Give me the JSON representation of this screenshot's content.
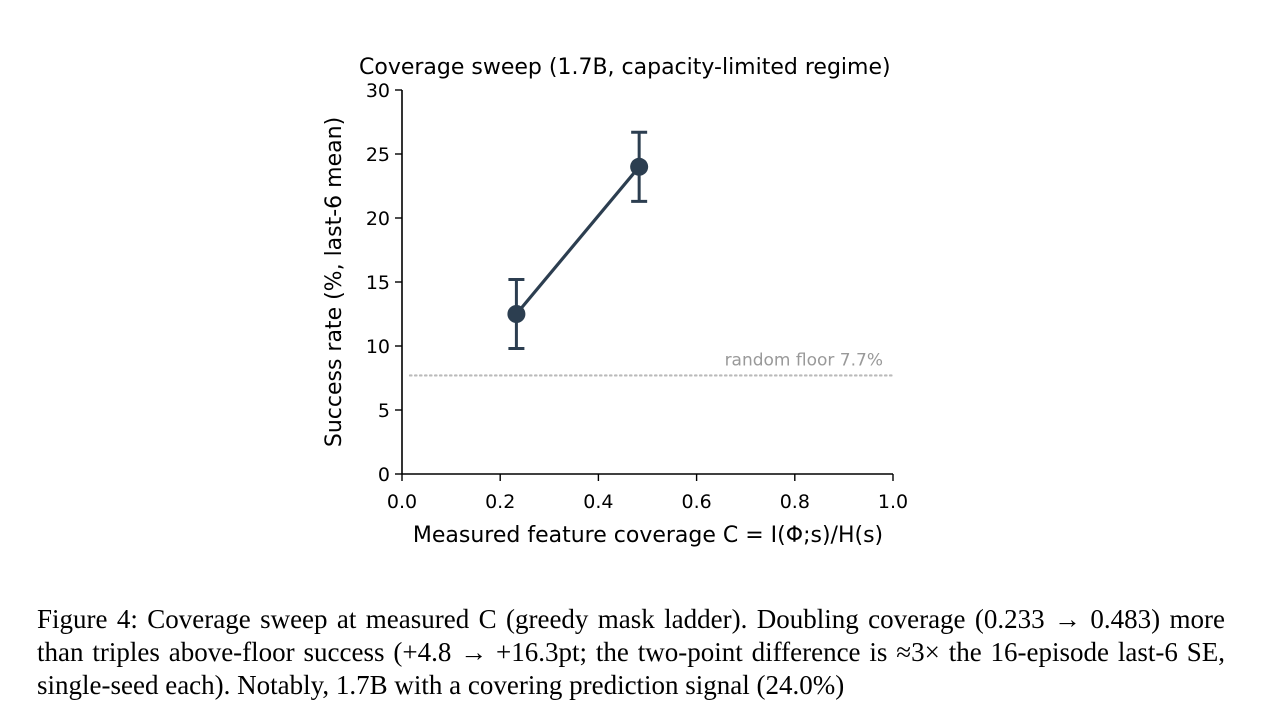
{
  "chart_data": {
    "type": "line",
    "title": "Coverage sweep (1.7B, capacity-limited regime)",
    "xlabel": "Measured feature coverage  C = I(Φ;s)/H(s)",
    "ylabel": "Success rate (%, last-6 mean)",
    "xlim": [
      0.0,
      1.0
    ],
    "ylim": [
      0,
      30
    ],
    "xticks": [
      "0.0",
      "0.2",
      "0.4",
      "0.6",
      "0.8",
      "1.0"
    ],
    "yticks": [
      "0",
      "5",
      "10",
      "15",
      "20",
      "25",
      "30"
    ],
    "grid": false,
    "series": [
      {
        "x": [
          0.233,
          0.483
        ],
        "y": [
          12.5,
          24.0
        ],
        "error": [
          2.7,
          2.7
        ],
        "color": "#2c3e50"
      }
    ],
    "reference_line": {
      "y": 7.7,
      "label": "random floor 7.7%",
      "color": "#bbbbbb",
      "style": "dotted"
    }
  },
  "caption": {
    "text": "Figure 4: Coverage sweep at measured C (greedy mask ladder). Doubling coverage (0.233 → 0.483) more than triples above-floor success (+4.8 → +16.3pt; the two-point difference is ≈3× the 16-episode last-6 SE, single-seed each). Notably, 1.7B with a covering prediction signal (24.0%)"
  }
}
